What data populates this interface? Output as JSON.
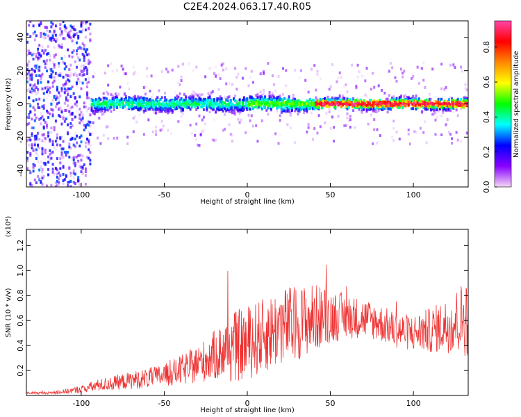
{
  "title": "C2E4.2024.063.17.40.R05",
  "chart_data": [
    {
      "type": "heatmap",
      "xlabel": "Height of straight line (km)",
      "ylabel": "Frequency (Hz)",
      "xlim": [
        -133,
        133
      ],
      "ylim": [
        -50,
        50
      ],
      "xticks": [
        "-100",
        "-50",
        "0",
        "50",
        "100"
      ],
      "yticks": [
        "-40",
        "-20",
        "0",
        "20",
        "40"
      ],
      "colorbar": {
        "label": "Normalized spectral amplitude",
        "range": [
          0,
          0.95
        ],
        "ticks": [
          "0.0",
          "0.2",
          "0.4",
          "0.6",
          "0.8"
        ],
        "colors": [
          "#f4d8f4",
          "#8800ff",
          "#0000ff",
          "#00ffff",
          "#00ff00",
          "#ffff00",
          "#ff8800",
          "#ff0000",
          "#ff44aa"
        ]
      }
    },
    {
      "type": "line",
      "xlabel": "Height of straight line (km)",
      "ylabel": "SNR (10 * v/v)",
      "y_multiplier": "(x10⁴)",
      "xlim": [
        -133,
        133
      ],
      "ylim": [
        0,
        1.33
      ],
      "xticks": [
        "-100",
        "-50",
        "0",
        "50",
        "100"
      ],
      "yticks": [
        "0.2",
        "0.4",
        "0.6",
        "0.8",
        "1.0",
        "1.2"
      ],
      "series": [
        {
          "color": "#ee3333",
          "x": [
            -133,
            -120,
            -110,
            -100,
            -90,
            -80,
            -70,
            -60,
            -50,
            -40,
            -30,
            -20,
            -10,
            0,
            10,
            20,
            30,
            40,
            50,
            60,
            70,
            80,
            90,
            100,
            110,
            120,
            130,
            133
          ],
          "y": [
            0.02,
            0.02,
            0.03,
            0.05,
            0.08,
            0.1,
            0.12,
            0.14,
            0.16,
            0.2,
            0.25,
            0.32,
            0.38,
            0.42,
            0.48,
            0.55,
            0.58,
            0.62,
            0.64,
            0.63,
            0.62,
            0.58,
            0.52,
            0.5,
            0.52,
            0.56,
            0.62,
            0.64
          ],
          "spread": [
            0.01,
            0.01,
            0.02,
            0.03,
            0.05,
            0.06,
            0.07,
            0.08,
            0.09,
            0.12,
            0.15,
            0.2,
            0.28,
            0.3,
            0.3,
            0.32,
            0.3,
            0.28,
            0.22,
            0.18,
            0.16,
            0.15,
            0.14,
            0.15,
            0.18,
            0.22,
            0.3,
            0.35
          ]
        }
      ]
    }
  ]
}
